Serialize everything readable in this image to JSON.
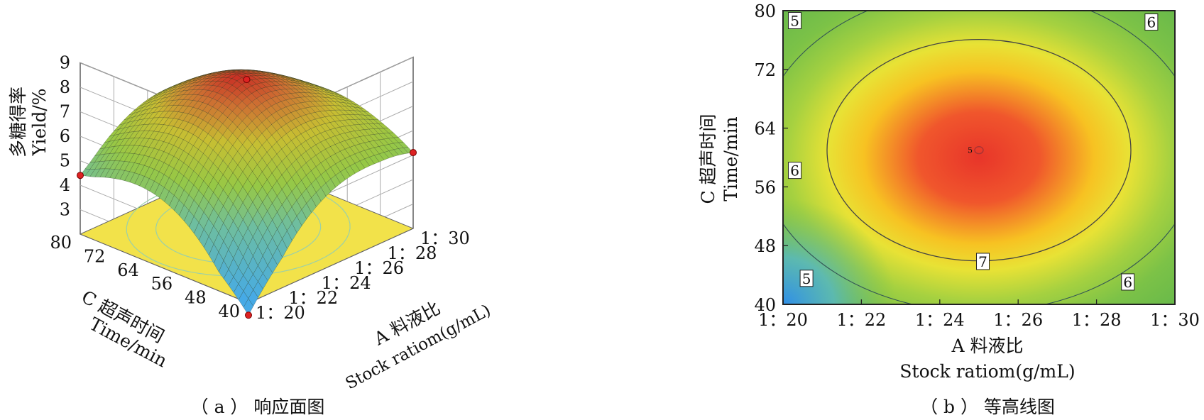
{
  "chart_data": [
    {
      "type": "surface3d",
      "caption": "（ a ） 响应面图",
      "zlabel_cn": "多糖得率",
      "zlabel_en": "Yield/%",
      "xlabel_cn": "A 料液比",
      "xlabel_en": "Stock ratiom(g/mL)",
      "ylabel_cn": "C 超声时间",
      "ylabel_en": "Time/min",
      "z_ticks": [
        "3",
        "4",
        "5",
        "6",
        "7",
        "8",
        "9"
      ],
      "zlim": [
        2,
        9
      ],
      "x_ticks": [
        "1：20",
        "1：22",
        "1：24",
        "1：26",
        "1：28",
        "1：30"
      ],
      "y_ticks": [
        "40",
        "48",
        "56",
        "64",
        "72",
        "80"
      ],
      "xlim": [
        20,
        30
      ],
      "ylim": [
        40,
        80
      ],
      "surface_peak": {
        "x": 25,
        "y": 62,
        "z": 8.25
      },
      "surface_corners": [
        {
          "x": 20,
          "y": 40,
          "z": 1.5
        },
        {
          "x": 30,
          "y": 40,
          "z": 5.1
        },
        {
          "x": 20,
          "y": 80,
          "z": 4.4
        },
        {
          "x": 30,
          "y": 80,
          "z": 4.6
        }
      ],
      "design_points": [
        {
          "x": 25,
          "y": 60,
          "z": 8.2
        },
        {
          "x": 20,
          "y": 40,
          "z": 1.5
        },
        {
          "x": 20,
          "y": 80,
          "z": 4.4
        },
        {
          "x": 30,
          "y": 40,
          "z": 5.1
        }
      ],
      "floor_color": "#f2e24a",
      "grid": true
    },
    {
      "type": "contour",
      "caption": "（ b ） 等高线图",
      "xlabel_cn": "A 料液比",
      "xlabel_en": "Stock ratiom(g/mL)",
      "ylabel_cn": "C 超声时间",
      "ylabel_en": "Time/min",
      "x_ticks": [
        "1：20",
        "1：22",
        "1：24",
        "1：26",
        "1：28",
        "1：30"
      ],
      "y_ticks": [
        "40",
        "48",
        "56",
        "64",
        "72",
        "80"
      ],
      "xlim": [
        20,
        30
      ],
      "ylim": [
        40,
        80
      ],
      "center": {
        "x": 25,
        "y": 61
      },
      "center_label": "5",
      "contour_labels": [
        {
          "text": "5",
          "x": 20.3,
          "y": 78.6
        },
        {
          "text": "6",
          "x": 29.4,
          "y": 78.4
        },
        {
          "text": "6",
          "x": 20.3,
          "y": 58.2
        },
        {
          "text": "7",
          "x": 25.1,
          "y": 45.8
        },
        {
          "text": "5",
          "x": 20.6,
          "y": 43.5
        },
        {
          "text": "6",
          "x": 28.8,
          "y": 43.0
        }
      ],
      "contour_levels": [
        5,
        6,
        7
      ]
    }
  ]
}
